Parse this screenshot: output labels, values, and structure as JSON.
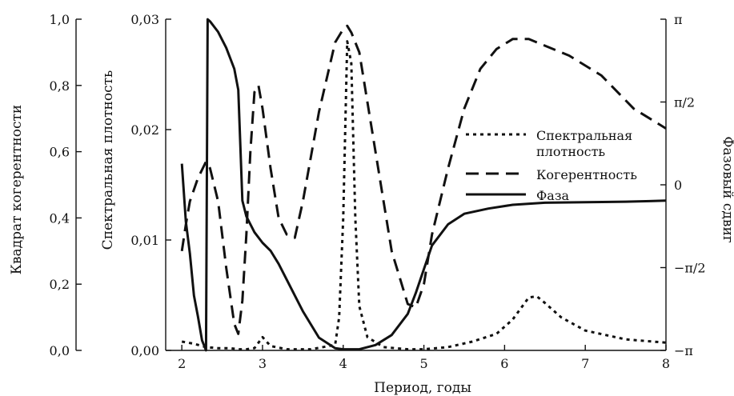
{
  "chart_data": {
    "type": "line",
    "xlabel": "Период, годы",
    "ylabel_left_outer": "Квадрат когерентности",
    "ylabel_left_inner": "Спектральная плотность",
    "ylabel_right": "Фазовый сдвиг",
    "xlim": [
      1.8,
      8.0
    ],
    "x_ticks": [
      "2",
      "3",
      "4",
      "5",
      "6",
      "7",
      "8"
    ],
    "x_tick_values": [
      2,
      3,
      4,
      5,
      6,
      7,
      8
    ],
    "coherence_axis": {
      "ylim": [
        0.0,
        1.0
      ],
      "ticks": [
        "0,0",
        "0,2",
        "0,4",
        "0,6",
        "0,8",
        "1,0"
      ],
      "tick_values": [
        0.0,
        0.2,
        0.4,
        0.6,
        0.8,
        1.0
      ]
    },
    "spectral_axis": {
      "ylim": [
        0.0,
        0.03
      ],
      "ticks": [
        "0,00",
        "0,01",
        "0,02",
        "0,03"
      ],
      "tick_values": [
        0.0,
        0.01,
        0.02,
        0.03
      ]
    },
    "phase_axis": {
      "ylim": [
        -3.1416,
        3.1416
      ],
      "ticks": [
        "−π",
        "−π/2",
        "0",
        "π/2",
        "π"
      ],
      "tick_values": [
        -3.1416,
        -1.5708,
        0.0,
        1.5708,
        3.1416
      ]
    },
    "legend_position": "right-middle",
    "series": [
      {
        "name": "Спектральная плотность",
        "axis": "spectral",
        "style": "dotted",
        "x": [
          2.0,
          2.15,
          2.3,
          2.45,
          2.6,
          2.7,
          2.8,
          2.9,
          3.0,
          3.1,
          3.3,
          3.6,
          3.9,
          3.95,
          4.0,
          4.05,
          4.1,
          4.15,
          4.2,
          4.3,
          4.5,
          4.8,
          5.0,
          5.3,
          5.6,
          5.9,
          6.1,
          6.3,
          6.4,
          6.5,
          6.7,
          7.0,
          7.5,
          8.0
        ],
        "y": [
          0.0008,
          0.0006,
          0.0003,
          0.0002,
          0.0002,
          0.0001,
          0.0001,
          0.0002,
          0.0012,
          0.0004,
          0.0001,
          0.0001,
          0.0005,
          0.003,
          0.012,
          0.028,
          0.026,
          0.012,
          0.004,
          0.0012,
          0.0003,
          0.0001,
          0.0001,
          0.0003,
          0.0008,
          0.0015,
          0.0028,
          0.0048,
          0.0049,
          0.0043,
          0.003,
          0.0018,
          0.001,
          0.0007
        ]
      },
      {
        "name": "Когерентность",
        "axis": "coherence",
        "style": "dashed",
        "x": [
          2.0,
          2.05,
          2.1,
          2.2,
          2.3,
          2.35,
          2.45,
          2.55,
          2.65,
          2.7,
          2.75,
          2.8,
          2.85,
          2.9,
          2.95,
          3.0,
          3.1,
          3.2,
          3.3,
          3.4,
          3.5,
          3.7,
          3.9,
          4.0,
          4.05,
          4.1,
          4.2,
          4.4,
          4.6,
          4.8,
          4.9,
          5.0,
          5.1,
          5.3,
          5.5,
          5.7,
          5.9,
          6.1,
          6.3,
          6.5,
          6.8,
          7.2,
          7.6,
          8.0
        ],
        "y": [
          0.3,
          0.38,
          0.45,
          0.52,
          0.57,
          0.55,
          0.45,
          0.25,
          0.08,
          0.05,
          0.15,
          0.35,
          0.6,
          0.78,
          0.8,
          0.73,
          0.55,
          0.4,
          0.35,
          0.34,
          0.45,
          0.72,
          0.93,
          0.97,
          0.98,
          0.96,
          0.9,
          0.6,
          0.3,
          0.14,
          0.13,
          0.2,
          0.35,
          0.55,
          0.73,
          0.85,
          0.91,
          0.94,
          0.94,
          0.92,
          0.89,
          0.83,
          0.73,
          0.67
        ]
      },
      {
        "name": "Фаза",
        "axis": "phase",
        "style": "solid",
        "x": [
          2.0,
          2.05,
          2.1,
          2.15,
          2.2,
          2.25,
          2.3,
          2.32,
          2.35,
          2.45,
          2.55,
          2.65,
          2.7,
          2.75,
          2.8,
          2.9,
          3.0,
          3.1,
          3.2,
          3.3,
          3.5,
          3.7,
          3.9,
          4.0,
          4.2,
          4.4,
          4.6,
          4.8,
          4.9,
          5.0,
          5.1,
          5.3,
          5.5,
          5.8,
          6.1,
          6.5,
          7.0,
          7.5,
          7.8,
          8.0
        ],
        "y": [
          0.4,
          -0.7,
          -1.3,
          -2.1,
          -2.5,
          -2.95,
          -3.14,
          3.14,
          3.1,
          2.9,
          2.6,
          2.2,
          1.8,
          -0.3,
          -0.6,
          -0.9,
          -1.1,
          -1.25,
          -1.5,
          -1.8,
          -2.4,
          -2.9,
          -3.1,
          -3.12,
          -3.12,
          -3.04,
          -2.85,
          -2.45,
          -2.05,
          -1.6,
          -1.15,
          -0.75,
          -0.55,
          -0.45,
          -0.38,
          -0.34,
          -0.33,
          -0.32,
          -0.31,
          -0.3
        ]
      }
    ]
  }
}
